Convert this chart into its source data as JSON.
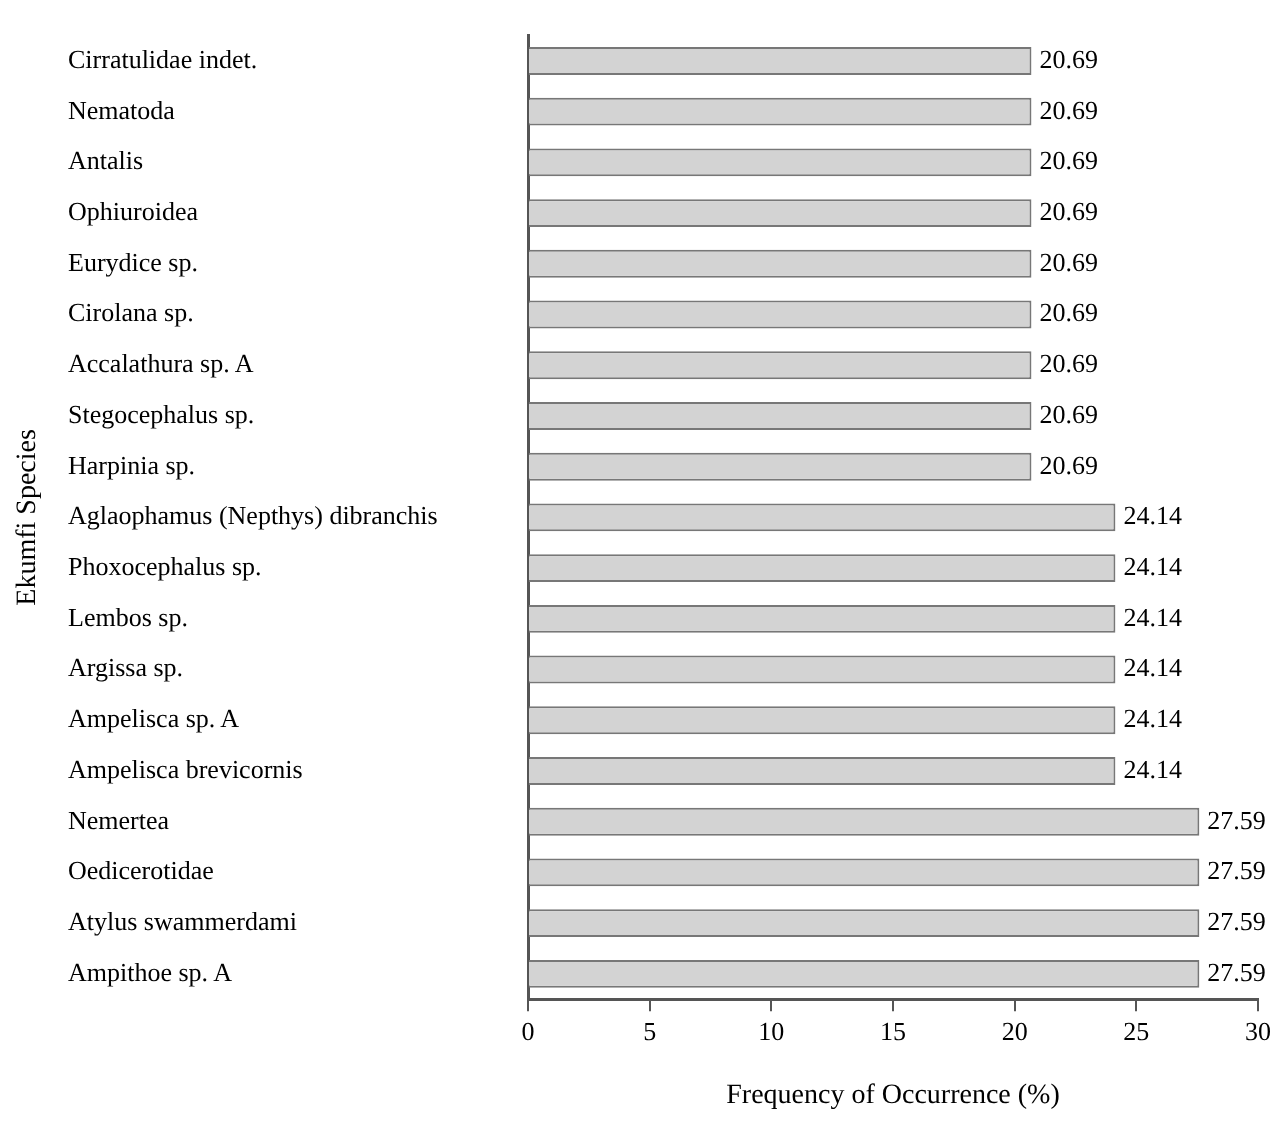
{
  "chart_data": {
    "type": "bar",
    "orientation": "horizontal",
    "xlabel": "Frequency of Occurrence (%)",
    "ylabel": "Ekumfi Species",
    "categories": [
      "Cirratulidae indet.",
      "Nematoda",
      "Antalis",
      "Ophiuroidea",
      "Eurydice sp.",
      "Cirolana sp.",
      "Accalathura sp. A",
      "Stegocephalus sp.",
      "Harpinia sp.",
      "Aglaophamus (Nepthys) dibranchis",
      "Phoxocephalus sp.",
      "Lembos sp.",
      "Argissa sp.",
      "Ampelisca sp. A",
      "Ampelisca brevicornis",
      "Nemertea",
      "Oedicerotidae",
      "Atylus swammerdami",
      "Ampithoe sp. A"
    ],
    "values": [
      20.69,
      20.69,
      20.69,
      20.69,
      20.69,
      20.69,
      20.69,
      20.69,
      20.69,
      24.14,
      24.14,
      24.14,
      24.14,
      24.14,
      24.14,
      27.59,
      27.59,
      27.59,
      27.59
    ],
    "color": "#d3d3d3",
    "xlim": [
      0,
      30
    ],
    "xticks": [
      0,
      5,
      10,
      15,
      20,
      25,
      30
    ],
    "grid": false,
    "legend": false,
    "data_labels": true
  }
}
